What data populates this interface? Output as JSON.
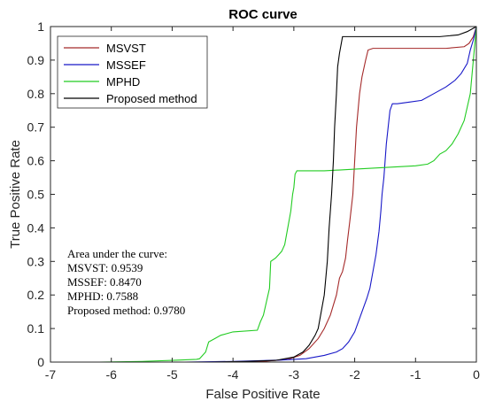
{
  "chart_data": {
    "type": "line",
    "title": "ROC curve",
    "xlabel": "False Positive Rate",
    "ylabel": "True Positive Rate",
    "xlim": [
      -7,
      0
    ],
    "ylim": [
      0,
      1
    ],
    "xticks": [
      -7,
      -6,
      -5,
      -4,
      -3,
      -2,
      -1,
      0
    ],
    "yticks": [
      0,
      0.1,
      0.2,
      0.3,
      0.4,
      0.5,
      0.6,
      0.7,
      0.8,
      0.9,
      1
    ],
    "legend_position": "top-left",
    "grid": false,
    "series": [
      {
        "name": "MSVST",
        "color": "#a52a2a",
        "points": [
          [
            -4.5,
            0
          ],
          [
            -3.5,
            0.002
          ],
          [
            -3.1,
            0.008
          ],
          [
            -2.9,
            0.02
          ],
          [
            -2.75,
            0.04
          ],
          [
            -2.6,
            0.07
          ],
          [
            -2.5,
            0.1
          ],
          [
            -2.4,
            0.14
          ],
          [
            -2.35,
            0.17
          ],
          [
            -2.3,
            0.2
          ],
          [
            -2.25,
            0.25
          ],
          [
            -2.2,
            0.27
          ],
          [
            -2.15,
            0.31
          ],
          [
            -2.12,
            0.36
          ],
          [
            -2.08,
            0.42
          ],
          [
            -2.03,
            0.5
          ],
          [
            -2.0,
            0.6
          ],
          [
            -1.97,
            0.7
          ],
          [
            -1.92,
            0.8
          ],
          [
            -1.88,
            0.85
          ],
          [
            -1.82,
            0.9
          ],
          [
            -1.78,
            0.93
          ],
          [
            -1.7,
            0.935
          ],
          [
            -0.5,
            0.935
          ],
          [
            -0.2,
            0.94
          ],
          [
            -0.12,
            0.95
          ],
          [
            -0.05,
            0.97
          ],
          [
            0,
            1
          ]
        ]
      },
      {
        "name": "MSSEF",
        "color": "#1818c8",
        "points": [
          [
            -4.8,
            0
          ],
          [
            -4,
            0.002
          ],
          [
            -3.2,
            0.006
          ],
          [
            -2.8,
            0.01
          ],
          [
            -2.5,
            0.02
          ],
          [
            -2.3,
            0.03
          ],
          [
            -2.2,
            0.04
          ],
          [
            -2.1,
            0.06
          ],
          [
            -2.0,
            0.09
          ],
          [
            -1.9,
            0.14
          ],
          [
            -1.8,
            0.19
          ],
          [
            -1.75,
            0.22
          ],
          [
            -1.7,
            0.27
          ],
          [
            -1.65,
            0.32
          ],
          [
            -1.6,
            0.39
          ],
          [
            -1.57,
            0.45
          ],
          [
            -1.55,
            0.5
          ],
          [
            -1.52,
            0.55
          ],
          [
            -1.5,
            0.6
          ],
          [
            -1.48,
            0.65
          ],
          [
            -1.45,
            0.7
          ],
          [
            -1.42,
            0.75
          ],
          [
            -1.38,
            0.77
          ],
          [
            -1.3,
            0.77
          ],
          [
            -1.1,
            0.775
          ],
          [
            -0.9,
            0.78
          ],
          [
            -0.7,
            0.8
          ],
          [
            -0.5,
            0.82
          ],
          [
            -0.35,
            0.84
          ],
          [
            -0.25,
            0.86
          ],
          [
            -0.15,
            0.89
          ],
          [
            -0.1,
            0.93
          ],
          [
            -0.05,
            0.96
          ],
          [
            0,
            1
          ]
        ]
      },
      {
        "name": "MPHD",
        "color": "#22cc22",
        "points": [
          [
            -6.2,
            0
          ],
          [
            -5.5,
            0.002
          ],
          [
            -5,
            0.005
          ],
          [
            -4.6,
            0.008
          ],
          [
            -4.55,
            0.01
          ],
          [
            -4.45,
            0.03
          ],
          [
            -4.4,
            0.06
          ],
          [
            -4.3,
            0.07
          ],
          [
            -4.2,
            0.08
          ],
          [
            -4.0,
            0.09
          ],
          [
            -3.6,
            0.095
          ],
          [
            -3.55,
            0.12
          ],
          [
            -3.5,
            0.14
          ],
          [
            -3.45,
            0.18
          ],
          [
            -3.4,
            0.22
          ],
          [
            -3.38,
            0.3
          ],
          [
            -3.3,
            0.31
          ],
          [
            -3.25,
            0.32
          ],
          [
            -3.2,
            0.33
          ],
          [
            -3.15,
            0.35
          ],
          [
            -3.1,
            0.4
          ],
          [
            -3.05,
            0.45
          ],
          [
            -3.02,
            0.5
          ],
          [
            -3.0,
            0.52
          ],
          [
            -2.98,
            0.56
          ],
          [
            -2.95,
            0.57
          ],
          [
            -2.5,
            0.57
          ],
          [
            -2.0,
            0.575
          ],
          [
            -1.5,
            0.58
          ],
          [
            -1.0,
            0.585
          ],
          [
            -0.8,
            0.59
          ],
          [
            -0.7,
            0.6
          ],
          [
            -0.6,
            0.62
          ],
          [
            -0.5,
            0.63
          ],
          [
            -0.4,
            0.65
          ],
          [
            -0.3,
            0.68
          ],
          [
            -0.2,
            0.72
          ],
          [
            -0.15,
            0.76
          ],
          [
            -0.1,
            0.8
          ],
          [
            -0.05,
            0.9
          ],
          [
            0,
            1
          ]
        ]
      },
      {
        "name": "Proposed method",
        "color": "#000000",
        "points": [
          [
            -4.4,
            0
          ],
          [
            -3.8,
            0.002
          ],
          [
            -3.3,
            0.005
          ],
          [
            -3.0,
            0.015
          ],
          [
            -2.85,
            0.03
          ],
          [
            -2.75,
            0.05
          ],
          [
            -2.65,
            0.08
          ],
          [
            -2.6,
            0.1
          ],
          [
            -2.55,
            0.15
          ],
          [
            -2.5,
            0.2
          ],
          [
            -2.45,
            0.3
          ],
          [
            -2.42,
            0.4
          ],
          [
            -2.38,
            0.5
          ],
          [
            -2.35,
            0.6
          ],
          [
            -2.33,
            0.7
          ],
          [
            -2.3,
            0.8
          ],
          [
            -2.28,
            0.88
          ],
          [
            -2.25,
            0.92
          ],
          [
            -2.2,
            0.97
          ],
          [
            -1.5,
            0.97
          ],
          [
            -0.6,
            0.97
          ],
          [
            -0.3,
            0.975
          ],
          [
            -0.15,
            0.985
          ],
          [
            0,
            1
          ]
        ]
      }
    ],
    "annotation": {
      "heading": "Area under the curve:",
      "lines": [
        "MSVST: 0.9539",
        "MSSEF: 0.8470",
        "MPHD: 0.7588",
        "Proposed method: 0.9780"
      ]
    }
  }
}
